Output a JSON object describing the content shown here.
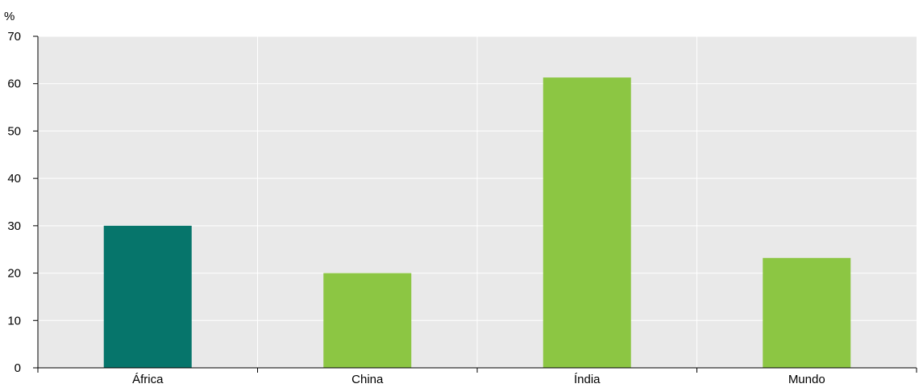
{
  "chart_data": {
    "type": "bar",
    "title": "",
    "xlabel": "",
    "ylabel": "%",
    "categories": [
      "África",
      "China",
      "Índia",
      "Mundo"
    ],
    "values": [
      30,
      20,
      61.3,
      23.2
    ],
    "ylim": [
      0,
      70
    ],
    "yticks": [
      "0",
      "10",
      "20",
      "30",
      "40",
      "50",
      "60",
      "70"
    ],
    "grid": true,
    "legend": "none",
    "colors": {
      "highlight": "#06756b",
      "default": "#8cc643",
      "plot_background": "#e9e9e9",
      "gridline": "#ffffff",
      "axis": "#000000"
    },
    "highlight_index": 0
  }
}
